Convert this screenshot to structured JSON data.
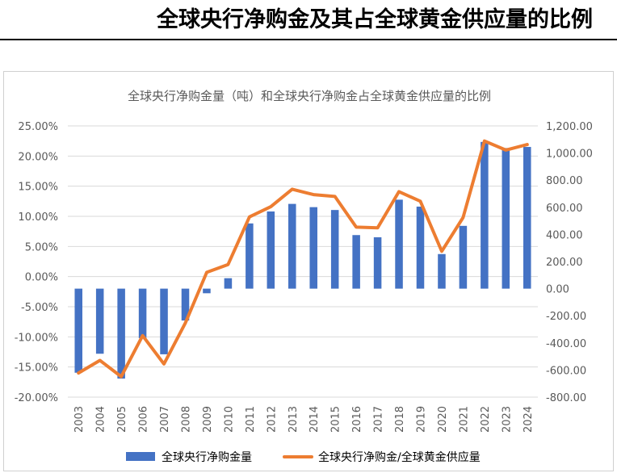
{
  "page": {
    "title": "全球央行净购金及其占全球黄金供应量的比例"
  },
  "chart_data": {
    "type": "bar+line",
    "title": "全球央行净购金量（吨）和全球央行净购金占全球黄金供应量的比例",
    "categories": [
      "2003",
      "2004",
      "2005",
      "2006",
      "2007",
      "2008",
      "2009",
      "2010",
      "2011",
      "2012",
      "2013",
      "2014",
      "2015",
      "2016",
      "2017",
      "2018",
      "2019",
      "2020",
      "2021",
      "2022",
      "2023",
      "2024"
    ],
    "series": [
      {
        "name": "全球央行净购金量",
        "type": "bar",
        "axis": "right",
        "color": "#4472C4",
        "values": [
          -620,
          -480,
          -663,
          -365,
          -484,
          -235,
          -34,
          77,
          481,
          569,
          625,
          601,
          580,
          395,
          379,
          656,
          605,
          255,
          463,
          1082,
          1037,
          1045
        ]
      },
      {
        "name": "全球央行净购金/全球黄金供应量",
        "type": "line",
        "axis": "left",
        "color": "#ED7D31",
        "values": [
          -0.16,
          -0.139,
          -0.166,
          -0.098,
          -0.145,
          -0.077,
          0.007,
          0.02,
          0.099,
          0.116,
          0.145,
          0.136,
          0.133,
          0.082,
          0.081,
          0.141,
          0.125,
          0.042,
          0.098,
          0.225,
          0.21,
          0.219
        ]
      }
    ],
    "left_axis": {
      "min": -0.2,
      "max": 0.25,
      "step": 0.05,
      "tick_labels": [
        "-20.00%",
        "-15.00%",
        "-10.00%",
        "-5.00%",
        "0.00%",
        "5.00%",
        "10.00%",
        "15.00%",
        "20.00%",
        "25.00%"
      ]
    },
    "right_axis": {
      "min": -800,
      "max": 1200,
      "step": 200,
      "tick_labels": [
        "-800.00",
        "-600.00",
        "-400.00",
        "-200.00",
        "0.00",
        "200.00",
        "400.00",
        "600.00",
        "800.00",
        "1,000.00",
        "1,200.00"
      ]
    },
    "grid": true,
    "legend_position": "bottom"
  }
}
